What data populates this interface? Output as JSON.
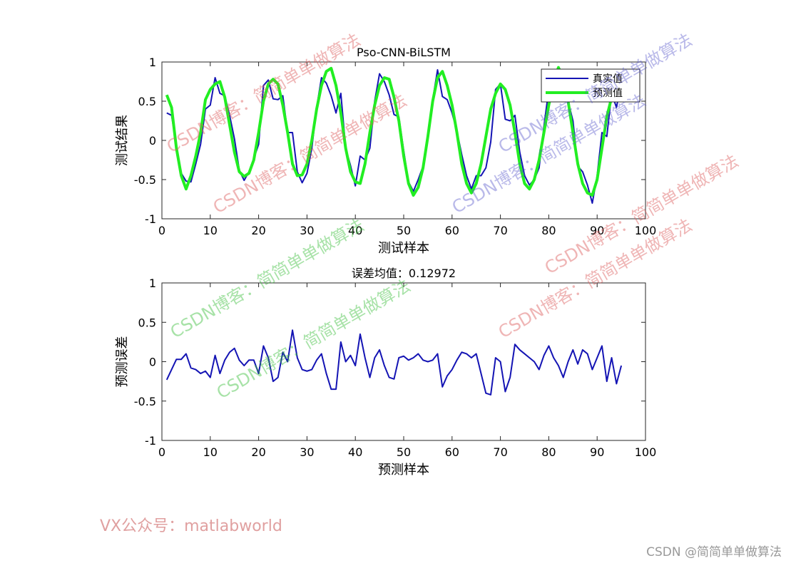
{
  "chart_data": [
    {
      "type": "line",
      "title": "Pso-CNN-BiLSTM",
      "xlabel": "测试样本",
      "ylabel": "测试结果",
      "x": [
        1,
        2,
        3,
        4,
        5,
        6,
        7,
        8,
        9,
        10,
        11,
        12,
        13,
        14,
        15,
        16,
        17,
        18,
        19,
        20,
        21,
        22,
        23,
        24,
        25,
        26,
        27,
        28,
        29,
        30,
        31,
        32,
        33,
        34,
        35,
        36,
        37,
        38,
        39,
        40,
        41,
        42,
        43,
        44,
        45,
        46,
        47,
        48,
        49,
        50,
        51,
        52,
        53,
        54,
        55,
        56,
        57,
        58,
        59,
        60,
        61,
        62,
        63,
        64,
        65,
        66,
        67,
        68,
        69,
        70,
        71,
        72,
        73,
        74,
        75,
        76,
        77,
        78,
        79,
        80,
        81,
        82,
        83,
        84,
        85,
        86,
        87,
        88,
        89,
        90,
        91,
        92,
        93,
        94,
        95
      ],
      "series": [
        {
          "name": "真实值",
          "color": "#1414b4",
          "width": 2,
          "values": [
            0.35,
            0.32,
            -0.07,
            -0.42,
            -0.52,
            -0.53,
            -0.3,
            -0.05,
            0.4,
            0.45,
            0.8,
            0.6,
            0.57,
            0.32,
            0.02,
            -0.38,
            -0.51,
            -0.4,
            -0.23,
            -0.05,
            0.7,
            0.77,
            0.53,
            0.52,
            0.57,
            0.1,
            0.1,
            -0.4,
            -0.54,
            -0.42,
            -0.1,
            0.42,
            0.8,
            0.73,
            0.57,
            0.35,
            0.6,
            -0.1,
            -0.32,
            -0.58,
            -0.2,
            -0.25,
            -0.1,
            0.5,
            0.85,
            0.75,
            0.58,
            0.33,
            0.3,
            -0.13,
            -0.53,
            -0.65,
            -0.5,
            -0.33,
            0.05,
            0.52,
            0.9,
            0.56,
            0.52,
            0.35,
            0.12,
            -0.18,
            -0.45,
            -0.62,
            -0.45,
            -0.45,
            -0.35,
            -0.02,
            0.65,
            0.72,
            0.27,
            0.25,
            0.32,
            -0.15,
            -0.45,
            -0.57,
            -0.5,
            -0.35,
            0.18,
            0.65,
            0.8,
            0.88,
            0.6,
            0.5,
            0.25,
            -0.33,
            -0.4,
            -0.57,
            -0.8,
            -0.45,
            0.1,
            0.05,
            0.6,
            0.42,
            0.75
          ]
        },
        {
          "name": "预测值",
          "color": "#22ee22",
          "width": 4,
          "values": [
            0.58,
            0.42,
            -0.1,
            -0.45,
            -0.62,
            -0.45,
            -0.2,
            0.1,
            0.52,
            0.65,
            0.72,
            0.75,
            0.55,
            0.2,
            -0.15,
            -0.4,
            -0.46,
            -0.42,
            -0.25,
            0.1,
            0.5,
            0.72,
            0.78,
            0.72,
            0.45,
            0.1,
            -0.3,
            -0.45,
            -0.44,
            -0.3,
            0.0,
            0.4,
            0.7,
            0.88,
            0.92,
            0.7,
            0.35,
            -0.1,
            -0.4,
            -0.53,
            -0.55,
            -0.3,
            0.1,
            0.45,
            0.7,
            0.8,
            0.78,
            0.55,
            0.25,
            -0.2,
            -0.55,
            -0.7,
            -0.6,
            -0.35,
            0.05,
            0.5,
            0.8,
            0.88,
            0.7,
            0.45,
            0.1,
            -0.3,
            -0.55,
            -0.67,
            -0.55,
            -0.3,
            0.05,
            0.4,
            0.6,
            0.72,
            0.65,
            0.45,
            0.1,
            -0.3,
            -0.55,
            -0.62,
            -0.5,
            -0.25,
            0.1,
            0.45,
            0.75,
            0.93,
            0.8,
            0.5,
            0.1,
            -0.3,
            -0.55,
            -0.67,
            -0.7,
            -0.5,
            -0.1,
            0.3,
            0.55,
            0.7,
            0.8
          ]
        }
      ],
      "legend": "northeast",
      "xlim": [
        0,
        100
      ],
      "xticks": [
        0,
        10,
        20,
        30,
        40,
        50,
        60,
        70,
        80,
        90,
        100
      ],
      "ylim": [
        -1,
        1
      ],
      "yticks": [
        -1,
        -0.5,
        0,
        0.5,
        1
      ]
    },
    {
      "type": "line",
      "title": "误差均值：0.12972",
      "xlabel": "预测样本",
      "ylabel": "预测误差",
      "x": [
        1,
        2,
        3,
        4,
        5,
        6,
        7,
        8,
        9,
        10,
        11,
        12,
        13,
        14,
        15,
        16,
        17,
        18,
        19,
        20,
        21,
        22,
        23,
        24,
        25,
        26,
        27,
        28,
        29,
        30,
        31,
        32,
        33,
        34,
        35,
        36,
        37,
        38,
        39,
        40,
        41,
        42,
        43,
        44,
        45,
        46,
        47,
        48,
        49,
        50,
        51,
        52,
        53,
        54,
        55,
        56,
        57,
        58,
        59,
        60,
        61,
        62,
        63,
        64,
        65,
        66,
        67,
        68,
        69,
        70,
        71,
        72,
        73,
        74,
        75,
        76,
        77,
        78,
        79,
        80,
        81,
        82,
        83,
        84,
        85,
        86,
        87,
        88,
        89,
        90,
        91,
        92,
        93,
        94,
        95
      ],
      "series": [
        {
          "color": "#1414b4",
          "width": 2,
          "values": [
            -0.23,
            -0.1,
            0.03,
            0.03,
            0.1,
            -0.08,
            -0.1,
            -0.15,
            -0.12,
            -0.2,
            0.08,
            -0.15,
            0.02,
            0.12,
            0.17,
            0.02,
            -0.05,
            0.02,
            0.02,
            -0.15,
            0.2,
            0.05,
            -0.25,
            -0.2,
            0.12,
            0.0,
            0.4,
            0.05,
            -0.1,
            -0.12,
            -0.1,
            0.02,
            0.1,
            -0.15,
            -0.35,
            -0.35,
            0.25,
            0.0,
            0.08,
            -0.05,
            0.35,
            0.05,
            -0.2,
            0.05,
            0.15,
            -0.05,
            -0.2,
            -0.22,
            0.05,
            0.07,
            0.02,
            0.05,
            0.1,
            0.02,
            0.0,
            0.02,
            0.1,
            -0.32,
            -0.18,
            -0.1,
            0.02,
            0.12,
            0.1,
            0.05,
            0.1,
            -0.15,
            -0.4,
            -0.42,
            0.05,
            0.0,
            -0.38,
            -0.2,
            0.22,
            0.15,
            0.1,
            0.05,
            0.0,
            -0.1,
            0.08,
            0.2,
            0.05,
            -0.05,
            -0.2,
            0.0,
            0.15,
            -0.03,
            0.15,
            0.1,
            -0.1,
            0.05,
            0.2,
            -0.25,
            0.05,
            -0.28,
            -0.05
          ]
        }
      ],
      "xlim": [
        0,
        100
      ],
      "xticks": [
        0,
        10,
        20,
        30,
        40,
        50,
        60,
        70,
        80,
        90,
        100
      ],
      "ylim": [
        -1,
        1
      ],
      "yticks": [
        -1,
        -0.5,
        0,
        0.5,
        1
      ]
    }
  ],
  "watermarks": [
    "CSDN博客：简简单单做算法",
    "CSDN博客：简简单单做算法",
    "CSDN博客：简简单单做算法",
    "CSDN博客：简简单单做算法",
    "CSDN博客：简简单单做算法",
    "CSDN博客：简简单单做算法",
    "CSDN博客：简简单单做算法",
    "CSDN博客：简简单单做算法"
  ],
  "footer_left": "VX公众号：matlabworld",
  "footer_right": "CSDN @简简单单做算法"
}
